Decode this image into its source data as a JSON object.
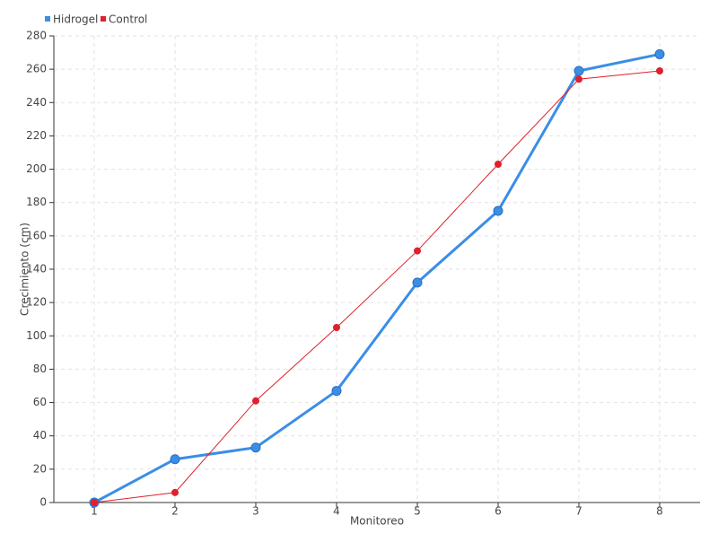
{
  "chart_data": {
    "type": "line",
    "categories": [
      "1",
      "2",
      "3",
      "4",
      "5",
      "6",
      "7",
      "8"
    ],
    "series": [
      {
        "name": "Hidrogel",
        "color": "#3a8ee6",
        "values": [
          0,
          26,
          33,
          67,
          132,
          175,
          259,
          269
        ]
      },
      {
        "name": "Control",
        "color": "#e0202c",
        "values": [
          0,
          6,
          61,
          105,
          151,
          203,
          254,
          259
        ]
      }
    ],
    "x_label": "Monitoreo",
    "y_label": "Crecimiento (cm)",
    "ylim": [
      0,
      280
    ],
    "yticks": [
      0,
      20,
      40,
      60,
      80,
      100,
      120,
      140,
      160,
      180,
      200,
      220,
      240,
      260,
      280
    ],
    "grid": true,
    "legend": "top-left"
  }
}
